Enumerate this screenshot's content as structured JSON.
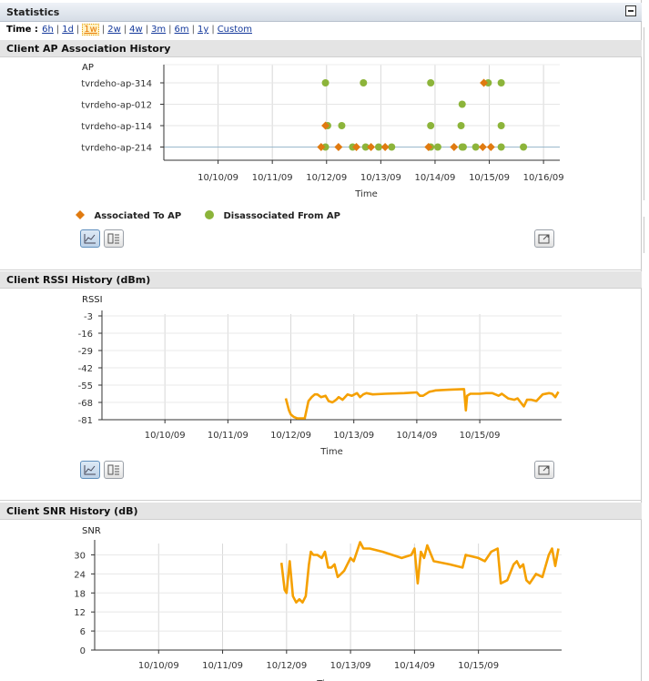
{
  "panel": {
    "title": "Statistics"
  },
  "timebar": {
    "label": "Time :",
    "ranges": [
      "6h",
      "1d",
      "1w",
      "2w",
      "4w",
      "3m",
      "6m",
      "1y",
      "Custom"
    ],
    "selected": "1w"
  },
  "charts": {
    "assoc": {
      "title": "Client AP Association History",
      "legend_assoc": "Associated To AP",
      "legend_disassoc": "Disassociated From AP"
    },
    "rssi": {
      "title": "Client RSSI History (dBm)"
    },
    "snr": {
      "title": "Client SNR History (dB)"
    }
  },
  "colors": {
    "assoc": "#e07a10",
    "disassoc": "#8cb43a",
    "line": "#f5a000"
  },
  "icons": {
    "chart_view": "line-chart-icon",
    "table_view": "table-icon",
    "popout": "popout-icon"
  },
  "chart_data": [
    {
      "type": "scatter",
      "title": "",
      "xlabel": "Time",
      "ylabel": "AP",
      "categories": [
        "tvrdeho-ap-314",
        "tvrdeho-ap-012",
        "tvrdeho-ap-114",
        "tvrdeho-ap-214"
      ],
      "x_ticks": [
        "10/10/09",
        "10/11/09",
        "10/12/09",
        "10/13/09",
        "10/14/09",
        "10/15/09",
        "10/16/09"
      ],
      "xlim": [
        9.0,
        16.3
      ],
      "series": [
        {
          "name": "Associated To AP",
          "marker": "diamond",
          "points": [
            {
              "ap": "tvrdeho-ap-314",
              "x": 14.9
            },
            {
              "ap": "tvrdeho-ap-114",
              "x": 11.98
            },
            {
              "ap": "tvrdeho-ap-214",
              "x": 11.9
            },
            {
              "ap": "tvrdeho-ap-214",
              "x": 12.22
            },
            {
              "ap": "tvrdeho-ap-214",
              "x": 12.55
            },
            {
              "ap": "tvrdeho-ap-214",
              "x": 12.82
            },
            {
              "ap": "tvrdeho-ap-214",
              "x": 13.08
            },
            {
              "ap": "tvrdeho-ap-214",
              "x": 13.88
            },
            {
              "ap": "tvrdeho-ap-214",
              "x": 14.35
            },
            {
              "ap": "tvrdeho-ap-214",
              "x": 14.88
            },
            {
              "ap": "tvrdeho-ap-214",
              "x": 15.03
            }
          ]
        },
        {
          "name": "Disassociated From AP",
          "marker": "circle",
          "points": [
            {
              "ap": "tvrdeho-ap-314",
              "x": 11.98
            },
            {
              "ap": "tvrdeho-ap-314",
              "x": 12.68
            },
            {
              "ap": "tvrdeho-ap-314",
              "x": 13.92
            },
            {
              "ap": "tvrdeho-ap-314",
              "x": 14.98
            },
            {
              "ap": "tvrdeho-ap-314",
              "x": 15.22
            },
            {
              "ap": "tvrdeho-ap-012",
              "x": 14.5
            },
            {
              "ap": "tvrdeho-ap-114",
              "x": 12.02
            },
            {
              "ap": "tvrdeho-ap-114",
              "x": 12.28
            },
            {
              "ap": "tvrdeho-ap-114",
              "x": 13.92
            },
            {
              "ap": "tvrdeho-ap-114",
              "x": 14.48
            },
            {
              "ap": "tvrdeho-ap-114",
              "x": 15.22
            },
            {
              "ap": "tvrdeho-ap-214",
              "x": 11.98
            },
            {
              "ap": "tvrdeho-ap-214",
              "x": 12.48
            },
            {
              "ap": "tvrdeho-ap-214",
              "x": 12.72
            },
            {
              "ap": "tvrdeho-ap-214",
              "x": 12.96
            },
            {
              "ap": "tvrdeho-ap-214",
              "x": 13.2
            },
            {
              "ap": "tvrdeho-ap-214",
              "x": 13.92
            },
            {
              "ap": "tvrdeho-ap-214",
              "x": 14.05
            },
            {
              "ap": "tvrdeho-ap-214",
              "x": 14.5
            },
            {
              "ap": "tvrdeho-ap-214",
              "x": 14.52
            },
            {
              "ap": "tvrdeho-ap-214",
              "x": 14.75
            },
            {
              "ap": "tvrdeho-ap-214",
              "x": 15.22
            },
            {
              "ap": "tvrdeho-ap-214",
              "x": 15.63
            }
          ]
        }
      ]
    },
    {
      "type": "line",
      "xlabel": "Time",
      "ylabel": "RSSI",
      "y_ticks": [
        -3,
        -16,
        -29,
        -42,
        -55,
        -68,
        -81
      ],
      "ylim": [
        -81,
        -3
      ],
      "x_ticks": [
        "10/10/09",
        "10/11/09",
        "10/12/09",
        "10/13/09",
        "10/14/09",
        "10/15/09"
      ],
      "xlim": [
        9.0,
        16.3
      ],
      "grid": true,
      "series": [
        {
          "name": "",
          "x": [
            11.92,
            11.97,
            12.0,
            12.05,
            12.1,
            12.15,
            12.22,
            12.28,
            12.33,
            12.38,
            12.42,
            12.48,
            12.55,
            12.6,
            12.66,
            12.72,
            12.76,
            12.82,
            12.9,
            12.97,
            13.05,
            13.1,
            13.15,
            13.2,
            13.3,
            13.5,
            13.8,
            14.0,
            14.05,
            14.1,
            14.2,
            14.25,
            14.3,
            14.5,
            14.75,
            14.78,
            14.8,
            14.85,
            15.0,
            15.1,
            15.2,
            15.3,
            15.35,
            15.45,
            15.55,
            15.6,
            15.65,
            15.7,
            15.75,
            15.82,
            15.9,
            16.0,
            16.1,
            16.15,
            16.2,
            16.25
          ],
          "values": [
            -65,
            -74,
            -77,
            -79,
            -80,
            -80,
            -80,
            -67,
            -64,
            -62,
            -62,
            -64,
            -63,
            -67,
            -68,
            -66,
            -64,
            -66,
            -62,
            -63,
            -61,
            -64,
            -62,
            -61,
            -62,
            -61.5,
            -61,
            -60.5,
            -63,
            -63,
            -60,
            -59.5,
            -59,
            -58.5,
            -58,
            -74,
            -63,
            -61.5,
            -61.5,
            -61,
            -61,
            -63,
            -61.5,
            -65,
            -66,
            -65,
            -68,
            -71,
            -66,
            -66,
            -67,
            -62,
            -61,
            -61.5,
            -64,
            -60
          ]
        }
      ]
    },
    {
      "type": "line",
      "xlabel": "Time",
      "ylabel": "SNR",
      "y_ticks": [
        30,
        24,
        18,
        12,
        6,
        0
      ],
      "ylim": [
        0,
        33
      ],
      "x_ticks": [
        "10/10/09",
        "10/11/09",
        "10/12/09",
        "10/13/09",
        "10/14/09",
        "10/15/09"
      ],
      "xlim": [
        9.0,
        16.3
      ],
      "grid": true,
      "series": [
        {
          "name": "",
          "x": [
            11.92,
            11.97,
            12.0,
            12.05,
            12.1,
            12.15,
            12.2,
            12.25,
            12.3,
            12.35,
            12.38,
            12.42,
            12.48,
            12.55,
            12.6,
            12.65,
            12.7,
            12.75,
            12.8,
            12.85,
            12.9,
            12.95,
            13.0,
            13.05,
            13.1,
            13.15,
            13.2,
            13.3,
            13.5,
            13.8,
            13.95,
            14.0,
            14.05,
            14.1,
            14.15,
            14.2,
            14.3,
            14.55,
            14.75,
            14.8,
            15.0,
            15.1,
            15.2,
            15.3,
            15.35,
            15.45,
            15.55,
            15.6,
            15.65,
            15.7,
            15.75,
            15.8,
            15.9,
            16.0,
            16.1,
            16.15,
            16.2,
            16.25
          ],
          "values": [
            27.5,
            19,
            18,
            28,
            17,
            15,
            16,
            15,
            17,
            27,
            31,
            30,
            30,
            29,
            31,
            26,
            26,
            27,
            23,
            24,
            25,
            27,
            29,
            28,
            31,
            34,
            32,
            32,
            31,
            29,
            30,
            32,
            21,
            31,
            29,
            33,
            28,
            27,
            26,
            30,
            29,
            28,
            31,
            32,
            21,
            22,
            27,
            28,
            26,
            27,
            22,
            21,
            24,
            23,
            30,
            32,
            26.5,
            32
          ]
        }
      ]
    }
  ]
}
